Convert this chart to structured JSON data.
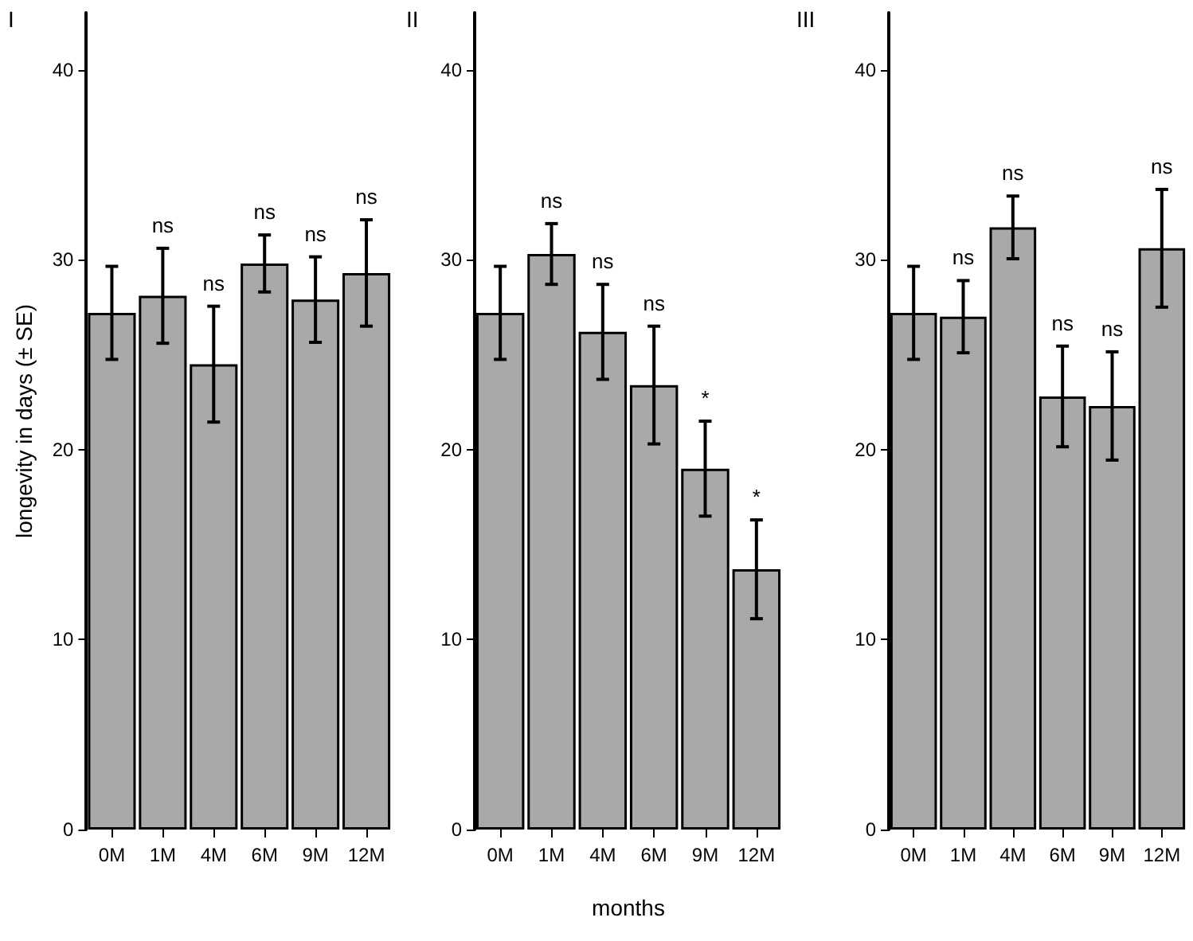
{
  "chart_data": [
    {
      "type": "bar",
      "title": "I",
      "ylabel": "longevity in days (± SE)",
      "categories": [
        "0M",
        "1M",
        "4M",
        "6M",
        "9M",
        "12M"
      ],
      "color": "#a9a9a9",
      "values": [
        27.2,
        28.1,
        24.5,
        29.8,
        27.9,
        29.3
      ],
      "errors": [
        2.45,
        2.5,
        3.05,
        1.5,
        2.25,
        2.8
      ],
      "ylim": [
        0,
        43
      ],
      "yticks": [
        0,
        10,
        20,
        30,
        40
      ],
      "grid": false,
      "annotations": [
        {
          "text": "ns",
          "x": "1M",
          "y": 30.6
        },
        {
          "text": "ns",
          "x": "4M",
          "y": 27.55
        },
        {
          "text": "ns",
          "x": "6M",
          "y": 31.3
        },
        {
          "text": "ns",
          "x": "9M",
          "y": 30.15
        },
        {
          "text": "ns",
          "x": "12M",
          "y": 32.1
        }
      ]
    },
    {
      "type": "bar",
      "title": "II",
      "xlabel": "months",
      "categories": [
        "0M",
        "1M",
        "4M",
        "6M",
        "9M",
        "12M"
      ],
      "color": "#a9a9a9",
      "values": [
        27.2,
        30.3,
        26.2,
        23.4,
        19.0,
        13.7
      ],
      "errors": [
        2.45,
        1.6,
        2.5,
        3.1,
        2.5,
        2.6
      ],
      "ylim": [
        0,
        43
      ],
      "yticks": [
        0,
        10,
        20,
        30,
        40
      ],
      "grid": false,
      "annotations": [
        {
          "text": "ns",
          "x": "1M",
          "y": 31.9
        },
        {
          "text": "ns",
          "x": "4M",
          "y": 28.7
        },
        {
          "text": "ns",
          "x": "6M",
          "y": 26.5
        },
        {
          "text": "*",
          "x": "9M",
          "y": 21.5
        },
        {
          "text": "*",
          "x": "12M",
          "y": 16.3
        }
      ]
    },
    {
      "type": "bar",
      "title": "III",
      "categories": [
        "0M",
        "1M",
        "4M",
        "6M",
        "9M",
        "12M"
      ],
      "color": "#a9a9a9",
      "values": [
        27.2,
        27.0,
        31.7,
        22.8,
        22.3,
        30.6
      ],
      "errors": [
        2.45,
        1.9,
        1.65,
        2.65,
        2.85,
        3.1
      ],
      "ylim": [
        0,
        43
      ],
      "yticks": [
        0,
        10,
        20,
        30,
        40
      ],
      "grid": false,
      "annotations": [
        {
          "text": "ns",
          "x": "1M",
          "y": 28.9
        },
        {
          "text": "ns",
          "x": "4M",
          "y": 33.35
        },
        {
          "text": "ns",
          "x": "6M",
          "y": 25.45
        },
        {
          "text": "ns",
          "x": "9M",
          "y": 25.15
        },
        {
          "text": "ns",
          "x": "12M",
          "y": 33.7
        }
      ]
    }
  ]
}
